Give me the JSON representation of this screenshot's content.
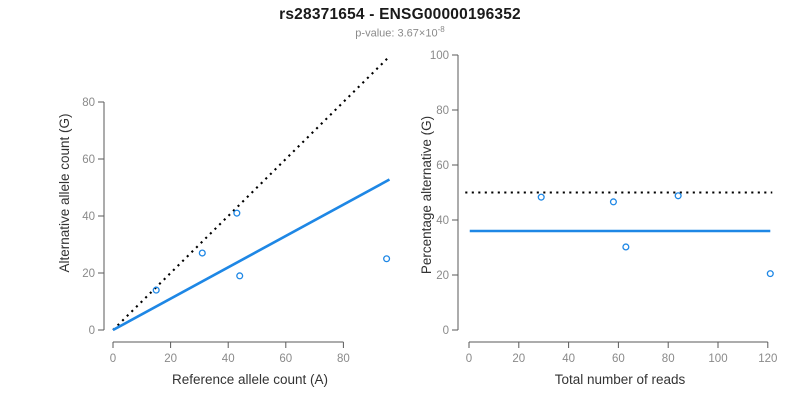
{
  "header": {
    "title": "rs28371654 - ENSG00000196352",
    "p_value_label": "p-value: 3.67×10",
    "p_value_exponent": "-8"
  },
  "colors": {
    "background": "#ffffff",
    "title": "#1a1a1a",
    "subtitle": "#8a8a8a",
    "axis": "#5a5a5a",
    "tick_label": "#8a8a8a",
    "axis_title": "#333333",
    "line_blue": "#1E87E5",
    "point_blue": "#1E87E5",
    "dotted_black": "#000000"
  },
  "chart_data": [
    {
      "id": "left",
      "type": "scatter",
      "xlabel": "Reference allele count (A)",
      "ylabel": "Alternative allele count (G)",
      "xlim": [
        0,
        98
      ],
      "ylim": [
        0,
        97
      ],
      "xticks": [
        0,
        20,
        40,
        60,
        80
      ],
      "yticks": [
        0,
        20,
        40,
        60,
        80
      ],
      "points": [
        [
          15,
          14
        ],
        [
          31,
          27
        ],
        [
          43,
          41
        ],
        [
          44,
          19
        ],
        [
          95,
          25
        ]
      ],
      "lines": [
        {
          "name": "identity-line",
          "style": "dotted",
          "color": "#000000",
          "x1": 0,
          "y1": 0,
          "x2": 95.5,
          "y2": 95.5
        },
        {
          "name": "fit-line",
          "style": "solid",
          "color": "#1E87E5",
          "x1": 0,
          "y1": 0,
          "x2": 96,
          "y2": 52.8
        }
      ],
      "grid": false,
      "legend": null
    },
    {
      "id": "right",
      "type": "scatter",
      "xlabel": "Total number of reads",
      "ylabel": "Percentage alternative (G)",
      "xlim": [
        0,
        122
      ],
      "ylim": [
        0,
        100
      ],
      "xticks": [
        0,
        20,
        40,
        60,
        80,
        100,
        120
      ],
      "yticks": [
        0,
        20,
        40,
        60,
        80,
        100
      ],
      "points": [
        [
          29,
          48.3
        ],
        [
          58,
          46.6
        ],
        [
          63,
          30.2
        ],
        [
          84,
          48.8
        ],
        [
          121,
          20.5
        ]
      ],
      "lines": [
        {
          "name": "expected-50pct-line",
          "style": "dotted",
          "color": "#000000",
          "x1": -1.5,
          "y1": 50,
          "x2": 121.8,
          "y2": 50
        },
        {
          "name": "observed-pct-line",
          "style": "solid",
          "color": "#1E87E5",
          "x1": 0.3,
          "y1": 36,
          "x2": 121,
          "y2": 36
        }
      ],
      "grid": false,
      "legend": null
    }
  ]
}
